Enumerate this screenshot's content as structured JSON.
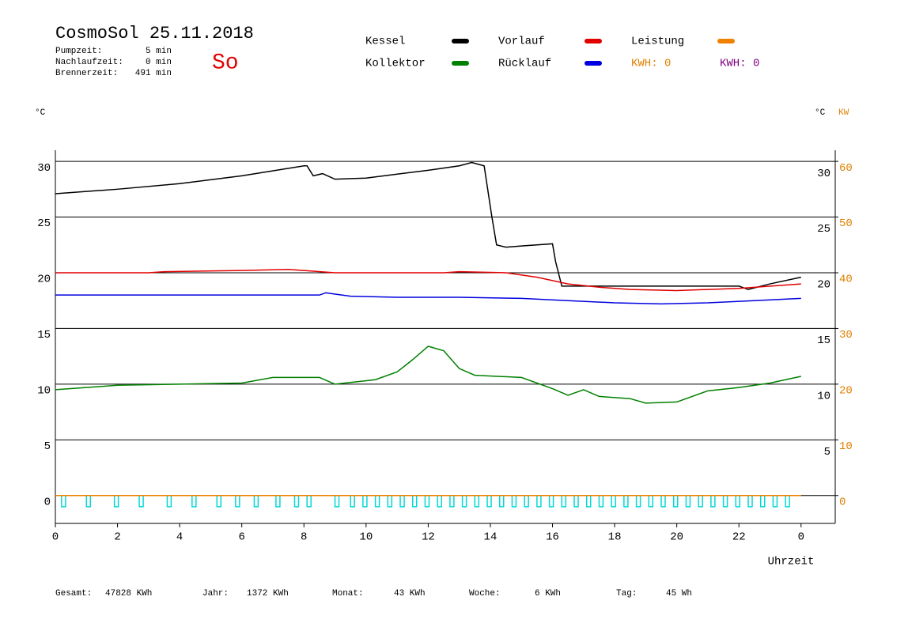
{
  "chart_data": {
    "type": "line",
    "title": "CosmoSol 25.11.2018",
    "day": "So",
    "info": [
      {
        "label": "Pumpzeit:",
        "value": "5 min"
      },
      {
        "label": "Nachlaufzeit:",
        "value": "0 min"
      },
      {
        "label": "Brennerzeit:",
        "value": "491 min"
      }
    ],
    "y_unit_left": "°C",
    "y_unit_right": "°C",
    "y2_unit": "KW",
    "xlabel": "Uhrzeit",
    "xlim": [
      0,
      25.1
    ],
    "xticks": [
      0,
      2,
      4,
      6,
      8,
      10,
      12,
      14,
      16,
      18,
      20,
      22,
      {
        "value": 24,
        "label": "0"
      }
    ],
    "ylim": [
      -2.5,
      31
    ],
    "yticks": [
      0,
      5,
      10,
      15,
      20,
      25,
      30
    ],
    "yticks_right": [
      5,
      10,
      15,
      20,
      25,
      30
    ],
    "y2lim": [
      -5,
      62
    ],
    "y2ticks": [
      0,
      10,
      20,
      30,
      40,
      50,
      60
    ],
    "grid": true,
    "series": [
      {
        "name": "Kessel",
        "color": "#000000",
        "x": [
          0,
          2,
          4,
          6,
          8,
          8.1,
          8.3,
          8.6,
          9,
          10,
          12,
          13,
          13.4,
          13.8,
          14.05,
          14.2,
          14.5,
          15,
          16,
          16.1,
          16.3,
          18,
          20,
          22,
          22.3,
          23,
          24
        ],
        "values": [
          27.1,
          27.5,
          28.0,
          28.7,
          29.6,
          29.6,
          28.7,
          28.9,
          28.4,
          28.5,
          29.2,
          29.6,
          29.9,
          29.6,
          25,
          22.5,
          22.3,
          22.4,
          22.6,
          21,
          18.8,
          18.8,
          18.8,
          18.8,
          18.5,
          19.0,
          19.6
        ]
      },
      {
        "name": "Vorlauf",
        "color": "#e00000",
        "x": [
          0,
          3,
          3.5,
          6,
          7.5,
          9,
          10,
          12.5,
          13,
          14.5,
          15.5,
          16.5,
          17.5,
          18.5,
          20,
          22,
          24
        ],
        "values": [
          20.0,
          20.0,
          20.1,
          20.2,
          20.3,
          20.0,
          20.0,
          20.0,
          20.1,
          20.0,
          19.6,
          19.0,
          18.7,
          18.5,
          18.4,
          18.6,
          19.0
        ]
      },
      {
        "name": "Leistung",
        "color": "#f08000",
        "axis": "y2",
        "x": [
          0,
          24
        ],
        "values": [
          0,
          0
        ]
      },
      {
        "name": "Kollektor",
        "color": "#008000",
        "x": [
          0,
          2,
          4,
          6,
          7,
          8.5,
          9,
          10.3,
          11,
          11.5,
          12,
          12.5,
          13,
          13.5,
          15,
          16,
          16.5,
          17,
          17.5,
          18.5,
          19,
          20,
          21,
          22,
          23,
          24
        ],
        "values": [
          9.5,
          9.9,
          10.0,
          10.1,
          10.6,
          10.6,
          10.0,
          10.4,
          11.1,
          12.2,
          13.4,
          13.0,
          11.4,
          10.8,
          10.6,
          9.6,
          9.0,
          9.5,
          8.9,
          8.7,
          8.3,
          8.4,
          9.4,
          9.7,
          10.1,
          10.7
        ]
      },
      {
        "name": "Rücklauf",
        "color": "#0000e0",
        "x": [
          0,
          4,
          8.5,
          8.7,
          9.5,
          11,
          13,
          15,
          16.5,
          18,
          19.5,
          21,
          22.5,
          24
        ],
        "values": [
          18.0,
          18.0,
          18.0,
          18.2,
          17.9,
          17.8,
          17.8,
          17.7,
          17.5,
          17.3,
          17.2,
          17.3,
          17.5,
          17.7
        ]
      }
    ],
    "pump": {
      "color": "#00d8d8",
      "x": [
        0.2,
        1.0,
        1.9,
        2.7,
        3.6,
        4.4,
        5.2,
        5.8,
        6.4,
        7.1,
        7.7,
        8.1,
        9.0,
        9.5,
        9.9,
        10.3,
        10.7,
        11.1,
        11.5,
        11.9,
        12.3,
        12.7,
        13.1,
        13.5,
        13.9,
        14.3,
        14.7,
        15.1,
        15.5,
        15.9,
        16.3,
        16.7,
        17.1,
        17.5,
        17.9,
        18.3,
        18.7,
        19.1,
        19.5,
        19.9,
        20.3,
        20.7,
        21.1,
        21.5,
        21.9,
        22.3,
        22.7,
        23.1,
        23.5
      ],
      "values": [
        -1,
        -1,
        -1,
        -1,
        -1,
        -1,
        -1,
        -1,
        -1,
        -1,
        -1,
        -1,
        -1,
        -1,
        -1,
        -1,
        -1,
        -1,
        -1,
        -1,
        -1,
        -1,
        -1,
        -1,
        -1,
        -1,
        -1,
        -1,
        -1,
        -1,
        -1,
        -1,
        -1,
        -1,
        -1,
        -1,
        -1,
        -1,
        -1,
        -1,
        -1,
        -1,
        -1,
        -1,
        -1,
        -1,
        -1,
        -1,
        -1
      ]
    },
    "kwh": [
      {
        "label": "KWH: 0",
        "color": "#e08000"
      },
      {
        "label": "KWH: 0",
        "color": "#800080"
      }
    ],
    "footer": [
      {
        "label": "Gesamt:",
        "value": "47828 KWh"
      },
      {
        "label": "Jahr:",
        "value": "1372 KWh"
      },
      {
        "label": "Monat:",
        "value": "43 KWh"
      },
      {
        "label": "Woche:",
        "value": "6 KWh"
      },
      {
        "label": "Tag:",
        "value": "45 Wh"
      }
    ]
  }
}
